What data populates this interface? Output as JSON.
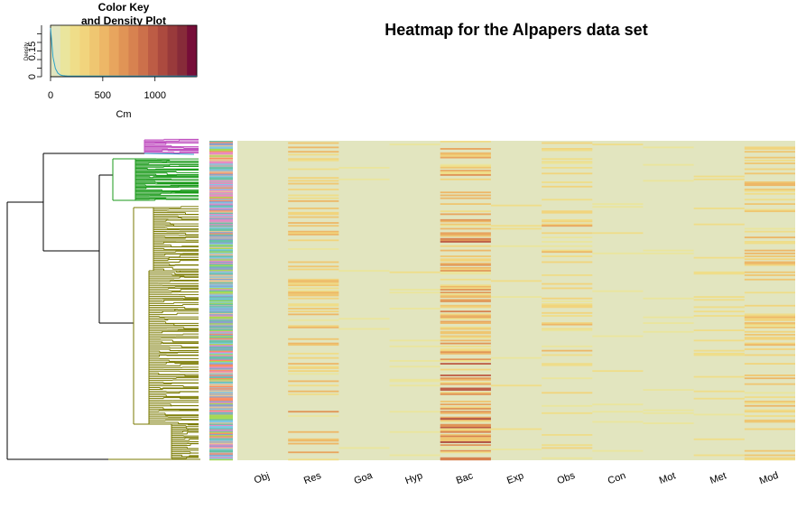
{
  "page": {
    "title": "Heatmap for the Alpapers data set"
  },
  "color_key": {
    "title_line1": "Color Key",
    "title_line2": "and Density Plot",
    "xlabel": "Cm",
    "ylabel": "Density",
    "x_ticks": [
      "0",
      "500",
      "1000"
    ],
    "y_ticks": [
      "0",
      "0.15"
    ],
    "range": [
      0,
      1400
    ],
    "palette": [
      "#e2e5bf",
      "#eae59d",
      "#efdd89",
      "#f1d47d",
      "#efc671",
      "#edb767",
      "#e8a55e",
      "#e09456",
      "#d78250",
      "#cc704b",
      "#bd5c45",
      "#ac4a3f",
      "#993a3b",
      "#872b39",
      "#760d38"
    ]
  },
  "chart_data": {
    "type": "heatmap",
    "title": "Heatmap for the Alpapers data set",
    "columns": [
      "Obj",
      "Res",
      "Goa",
      "Hyp",
      "Bac",
      "Exp",
      "Obs",
      "Con",
      "Mot",
      "Met",
      "Mod"
    ],
    "column_baseline_intensity": [
      0.0,
      0.22,
      0.0,
      0.02,
      0.35,
      0.03,
      0.12,
      0.03,
      0.02,
      0.06,
      0.2
    ],
    "column_peak_intensity": [
      0.0,
      0.7,
      0.05,
      0.15,
      0.85,
      0.15,
      0.45,
      0.15,
      0.1,
      0.25,
      0.45
    ],
    "row_cluster_colors": [
      "#c050c0",
      "#2aa2c8",
      "#1a9a1a",
      "#7a7a00"
    ],
    "side_bar_colors": [
      "#e78ac3",
      "#66c2a5",
      "#8da0cb",
      "#fc8d62",
      "#a6d854",
      "#e5c494",
      "#b3b3b3",
      "#7ec8e3"
    ],
    "color_key_range": [
      0,
      1400
    ],
    "y_density_ticks": [
      0,
      0.15
    ]
  }
}
